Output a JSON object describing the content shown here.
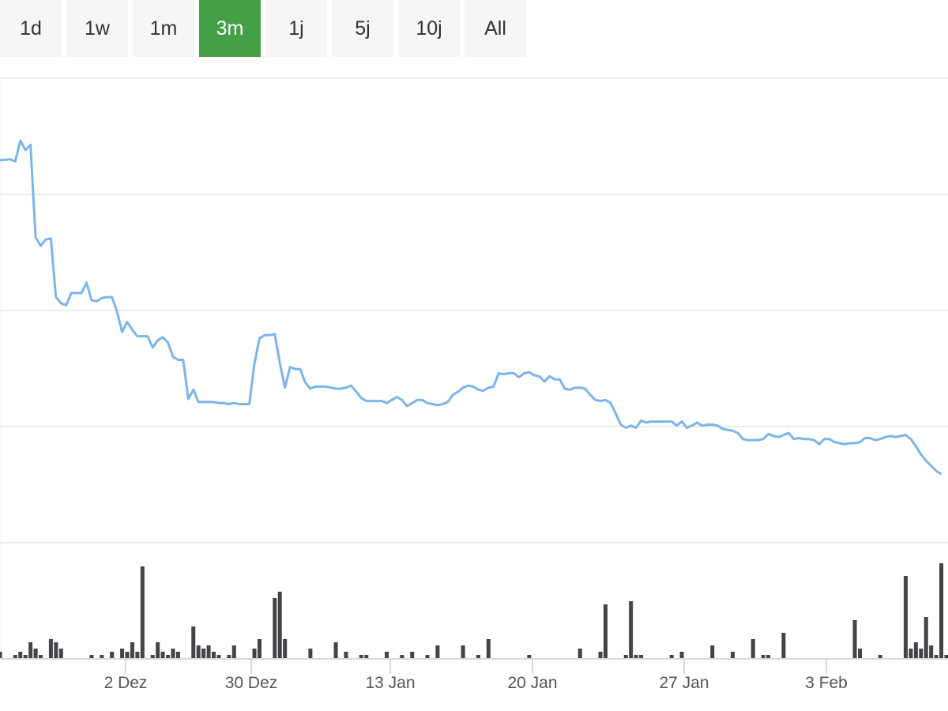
{
  "range_selector": {
    "buttons": [
      {
        "label": "1d",
        "active": false
      },
      {
        "label": "1w",
        "active": false
      },
      {
        "label": "1m",
        "active": false
      },
      {
        "label": "3m",
        "active": true
      },
      {
        "label": "1j",
        "active": false
      },
      {
        "label": "5j",
        "active": false
      },
      {
        "label": "10j",
        "active": false
      },
      {
        "label": "All",
        "active": false
      }
    ],
    "active_color": "#43a047"
  },
  "chart_data": {
    "type": "line",
    "title": "",
    "xlabel": "",
    "ylabel": "",
    "line_color": "#7cb5ec",
    "volume_color": "#434348",
    "grid": true,
    "x_tick_labels": [
      "2 Dez",
      "30 Dez",
      "13 Jan",
      "20 Jan",
      "27 Jan",
      "3 Feb"
    ],
    "price_series": [
      [
        0,
        72.1
      ],
      [
        2,
        72.2
      ],
      [
        3,
        72.0
      ],
      [
        4,
        74.0
      ],
      [
        5,
        73.1
      ],
      [
        6,
        73.6
      ],
      [
        7,
        64.6
      ],
      [
        8,
        63.8
      ],
      [
        9,
        64.4
      ],
      [
        10,
        64.5
      ],
      [
        11,
        58.8
      ],
      [
        12,
        58.2
      ],
      [
        13,
        58.0
      ],
      [
        14,
        59.2
      ],
      [
        15,
        59.2
      ],
      [
        16,
        59.2
      ],
      [
        17,
        60.2
      ],
      [
        18,
        58.5
      ],
      [
        19,
        58.4
      ],
      [
        20,
        58.7
      ],
      [
        21,
        58.8
      ],
      [
        22,
        58.8
      ],
      [
        23,
        57.4
      ],
      [
        24,
        55.4
      ],
      [
        25,
        56.4
      ],
      [
        26,
        55.6
      ],
      [
        27,
        55.0
      ],
      [
        28,
        55.0
      ],
      [
        29,
        55.0
      ],
      [
        30,
        53.9
      ],
      [
        31,
        54.6
      ],
      [
        32,
        54.9
      ],
      [
        33,
        54.4
      ],
      [
        34,
        53.0
      ],
      [
        35,
        52.7
      ],
      [
        36,
        52.7
      ],
      [
        37,
        48.9
      ],
      [
        38,
        49.8
      ],
      [
        39,
        48.6
      ],
      [
        40,
        48.6
      ],
      [
        41,
        48.6
      ],
      [
        42,
        48.6
      ],
      [
        43,
        48.5
      ],
      [
        44,
        48.5
      ],
      [
        45,
        48.4
      ],
      [
        46,
        48.5
      ],
      [
        47,
        48.4
      ],
      [
        48,
        48.4
      ],
      [
        49,
        48.4
      ],
      [
        50,
        52.3
      ],
      [
        51,
        54.8
      ],
      [
        52,
        55.1
      ],
      [
        53,
        55.1
      ],
      [
        54,
        55.2
      ],
      [
        55,
        52.4
      ],
      [
        56,
        50.0
      ],
      [
        57,
        52.0
      ],
      [
        58,
        51.8
      ],
      [
        59,
        51.8
      ],
      [
        60,
        50.5
      ],
      [
        61,
        49.9
      ],
      [
        62,
        50.1
      ],
      [
        63,
        50.1
      ],
      [
        64,
        50.1
      ],
      [
        65,
        50.0
      ],
      [
        66,
        49.9
      ],
      [
        67,
        49.9
      ],
      [
        68,
        50.0
      ],
      [
        69,
        50.2
      ],
      [
        70,
        49.6
      ],
      [
        71,
        49.0
      ],
      [
        72,
        48.7
      ],
      [
        73,
        48.7
      ],
      [
        74,
        48.7
      ],
      [
        75,
        48.7
      ],
      [
        76,
        48.5
      ],
      [
        77,
        48.8
      ],
      [
        78,
        49.1
      ],
      [
        79,
        48.8
      ],
      [
        80,
        48.2
      ],
      [
        81,
        48.5
      ],
      [
        82,
        48.8
      ],
      [
        83,
        48.8
      ],
      [
        84,
        48.5
      ],
      [
        85,
        48.4
      ],
      [
        86,
        48.3
      ],
      [
        87,
        48.4
      ],
      [
        88,
        48.6
      ],
      [
        89,
        49.3
      ],
      [
        90,
        49.6
      ],
      [
        91,
        50.0
      ],
      [
        92,
        50.2
      ],
      [
        93,
        50.1
      ],
      [
        94,
        49.8
      ],
      [
        95,
        49.7
      ],
      [
        96,
        50.0
      ],
      [
        97,
        50.1
      ],
      [
        98,
        51.4
      ],
      [
        99,
        51.3
      ],
      [
        100,
        51.4
      ],
      [
        101,
        51.4
      ],
      [
        102,
        51.0
      ],
      [
        103,
        51.4
      ],
      [
        104,
        51.5
      ],
      [
        105,
        51.2
      ],
      [
        106,
        51.1
      ],
      [
        107,
        50.6
      ],
      [
        108,
        51.1
      ],
      [
        109,
        50.8
      ],
      [
        110,
        50.8
      ],
      [
        111,
        49.9
      ],
      [
        112,
        49.8
      ],
      [
        113,
        50.0
      ],
      [
        114,
        50.0
      ],
      [
        115,
        49.9
      ],
      [
        116,
        49.3
      ],
      [
        117,
        48.8
      ],
      [
        118,
        48.7
      ],
      [
        119,
        48.8
      ],
      [
        120,
        48.5
      ],
      [
        121,
        47.5
      ],
      [
        122,
        46.4
      ],
      [
        123,
        46.1
      ],
      [
        124,
        46.3
      ],
      [
        125,
        46.1
      ],
      [
        126,
        46.8
      ],
      [
        127,
        46.6
      ],
      [
        128,
        46.7
      ],
      [
        129,
        46.7
      ],
      [
        130,
        46.7
      ],
      [
        131,
        46.7
      ],
      [
        132,
        46.7
      ],
      [
        133,
        46.3
      ],
      [
        134,
        46.7
      ],
      [
        135,
        46.1
      ],
      [
        136,
        46.3
      ],
      [
        137,
        46.6
      ],
      [
        138,
        46.3
      ],
      [
        139,
        46.4
      ],
      [
        140,
        46.4
      ],
      [
        141,
        46.3
      ],
      [
        142,
        46.0
      ],
      [
        143,
        45.9
      ],
      [
        144,
        45.8
      ],
      [
        145,
        45.6
      ],
      [
        146,
        45.0
      ],
      [
        147,
        44.9
      ],
      [
        148,
        44.9
      ],
      [
        149,
        44.9
      ],
      [
        150,
        45.0
      ],
      [
        151,
        45.5
      ],
      [
        152,
        45.3
      ],
      [
        153,
        45.2
      ],
      [
        154,
        45.4
      ],
      [
        155,
        45.6
      ],
      [
        156,
        45.0
      ],
      [
        157,
        45.1
      ],
      [
        158,
        45.0
      ],
      [
        159,
        45.0
      ],
      [
        160,
        44.9
      ],
      [
        161,
        44.5
      ],
      [
        162,
        45.0
      ],
      [
        163,
        45.0
      ],
      [
        164,
        44.7
      ],
      [
        165,
        44.6
      ],
      [
        166,
        44.5
      ],
      [
        167,
        44.6
      ],
      [
        168,
        44.6
      ],
      [
        169,
        44.7
      ],
      [
        170,
        45.1
      ],
      [
        171,
        45.1
      ],
      [
        172,
        44.9
      ],
      [
        173,
        45.0
      ],
      [
        174,
        45.2
      ],
      [
        175,
        45.3
      ],
      [
        176,
        45.2
      ],
      [
        177,
        45.3
      ],
      [
        178,
        45.4
      ],
      [
        179,
        45.0
      ],
      [
        180,
        44.3
      ],
      [
        181,
        43.5
      ],
      [
        182,
        42.9
      ],
      [
        183,
        42.4
      ],
      [
        184,
        41.9
      ],
      [
        185,
        41.6
      ]
    ],
    "volume_series": [
      [
        0,
        2
      ],
      [
        3,
        1
      ],
      [
        4,
        2
      ],
      [
        5,
        1
      ],
      [
        6,
        5
      ],
      [
        7,
        3
      ],
      [
        8,
        1
      ],
      [
        10,
        6
      ],
      [
        11,
        5
      ],
      [
        12,
        3
      ],
      [
        18,
        1
      ],
      [
        20,
        1
      ],
      [
        22,
        2
      ],
      [
        24,
        3
      ],
      [
        25,
        2
      ],
      [
        26,
        5
      ],
      [
        27,
        2
      ],
      [
        28,
        29
      ],
      [
        30,
        1
      ],
      [
        31,
        5
      ],
      [
        32,
        2
      ],
      [
        33,
        1
      ],
      [
        34,
        3
      ],
      [
        35,
        2
      ],
      [
        38,
        10
      ],
      [
        39,
        4
      ],
      [
        40,
        3
      ],
      [
        41,
        4
      ],
      [
        42,
        2
      ],
      [
        43,
        1
      ],
      [
        45,
        1
      ],
      [
        46,
        4
      ],
      [
        50,
        3
      ],
      [
        51,
        6
      ],
      [
        54,
        19
      ],
      [
        55,
        21
      ],
      [
        56,
        6
      ],
      [
        61,
        3
      ],
      [
        66,
        5
      ],
      [
        68,
        2
      ],
      [
        71,
        1
      ],
      [
        72,
        1
      ],
      [
        76,
        2
      ],
      [
        79,
        1
      ],
      [
        81,
        2
      ],
      [
        84,
        1
      ],
      [
        86,
        4
      ],
      [
        91,
        4
      ],
      [
        94,
        1
      ],
      [
        96,
        6
      ],
      [
        104,
        1
      ],
      [
        114,
        3
      ],
      [
        118,
        2
      ],
      [
        119,
        17
      ],
      [
        123,
        1
      ],
      [
        124,
        18
      ],
      [
        125,
        1
      ],
      [
        126,
        1
      ],
      [
        132,
        1
      ],
      [
        134,
        2
      ],
      [
        140,
        4
      ],
      [
        144,
        2
      ],
      [
        148,
        6
      ],
      [
        150,
        1
      ],
      [
        151,
        1
      ],
      [
        154,
        8
      ],
      [
        168,
        12
      ],
      [
        169,
        3
      ],
      [
        173,
        1
      ],
      [
        178,
        26
      ],
      [
        179,
        3
      ],
      [
        180,
        5
      ],
      [
        181,
        3
      ],
      [
        182,
        13
      ],
      [
        183,
        4
      ],
      [
        184,
        1
      ],
      [
        185,
        30
      ],
      [
        186,
        1
      ]
    ]
  }
}
